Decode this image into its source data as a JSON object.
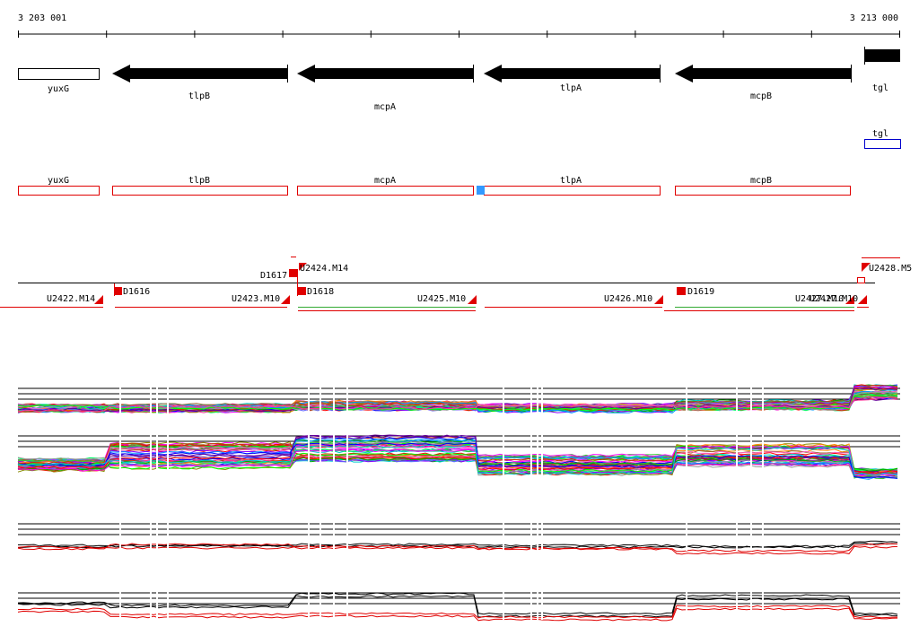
{
  "ruler": {
    "start_label": "3 203 001",
    "end_label": "3 213 000"
  },
  "genes_top": [
    {
      "name": "yuxG",
      "strand": "+",
      "style": "outline"
    },
    {
      "name": "tlpB",
      "strand": "-",
      "style": "solid"
    },
    {
      "name": "mcpA",
      "strand": "-",
      "style": "solid"
    },
    {
      "name": "tlpA",
      "strand": "-",
      "style": "solid"
    },
    {
      "name": "mcpB",
      "strand": "-",
      "style": "solid"
    },
    {
      "name": "tgl",
      "strand": "+",
      "style": "solid"
    }
  ],
  "tgl_row": {
    "name": "tgl",
    "color": "#0000cc"
  },
  "annotation_row": {
    "color": "#e00000",
    "genes": [
      "yuxG",
      "tlpB",
      "mcpA",
      "tlpA",
      "mcpB"
    ]
  },
  "features": {
    "units": [
      "U2422.M14",
      "U2423.M10",
      "U2424.M14",
      "U2425.M10",
      "U2426.M10",
      "U2427.M10",
      "U2428.M5"
    ],
    "units_overlap_label": "U2427.M10",
    "promoters": [
      "D1616",
      "D1617",
      "D1618",
      "D1619"
    ],
    "marker_color": "#e00000",
    "accent_color": "#33aa33"
  },
  "expression_tracks": [
    {
      "id": "multi-condition-panel-1",
      "type": "multi-line"
    },
    {
      "id": "multi-condition-panel-2",
      "type": "multi-line"
    },
    {
      "id": "summary-panel-1",
      "colors": [
        "#000000",
        "#e00000"
      ]
    },
    {
      "id": "summary-panel-2",
      "colors": [
        "#000000",
        "#e00000"
      ]
    }
  ]
}
